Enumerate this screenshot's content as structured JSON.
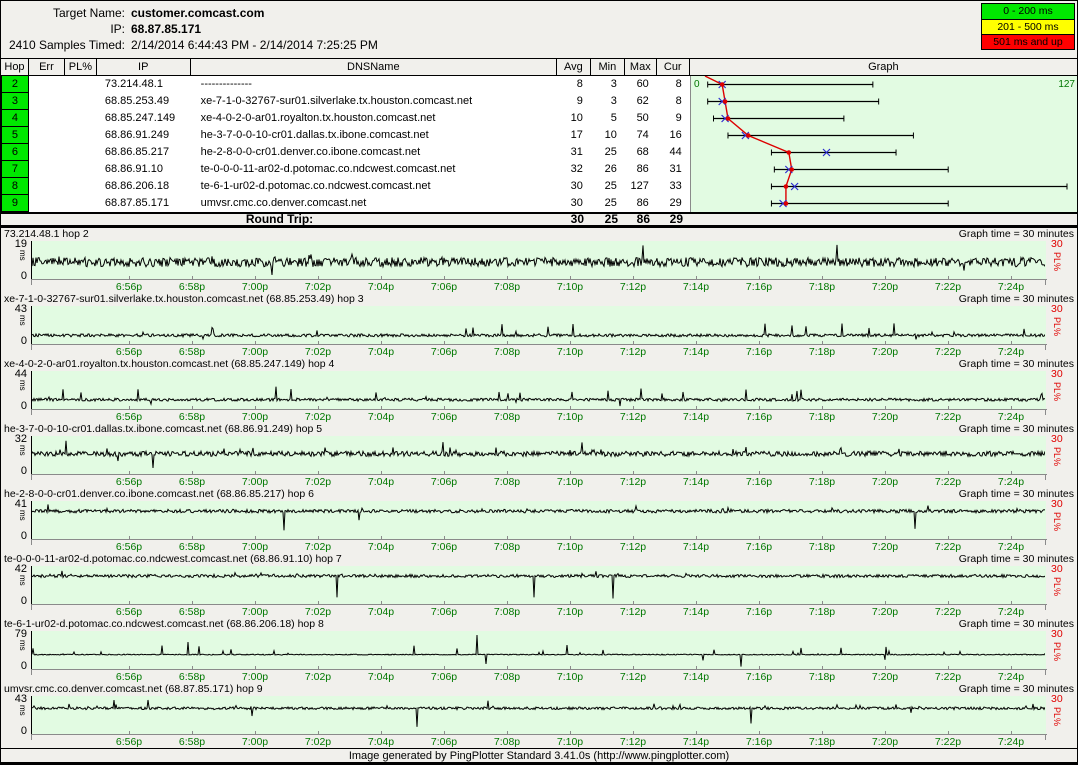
{
  "header": {
    "target_label": "Target Name:",
    "target_value": "customer.comcast.com",
    "ip_label": "IP:",
    "ip_value": "68.87.85.171",
    "samples_label": "2410 Samples Timed:",
    "samples_value": "2/14/2014 6:44:43 PM - 2/14/2014 7:25:25 PM"
  },
  "legend": {
    "items": [
      {
        "label": "0 - 200 ms",
        "color": "#00e800"
      },
      {
        "label": "201 - 500 ms",
        "color": "#ffff00"
      },
      {
        "label": "501 ms and up",
        "color": "#ff0000"
      }
    ]
  },
  "table": {
    "columns": [
      "Hop",
      "Err",
      "PL%",
      "IP",
      "DNSName",
      "Avg",
      "Min",
      "Max",
      "Cur",
      "Graph"
    ],
    "graph_axis": {
      "left_label": "0",
      "right_label": "127",
      "min": 0,
      "max": 127
    },
    "rows": [
      {
        "hop": "2",
        "err": "",
        "pl": "",
        "ip": "73.214.48.1",
        "dns": "--------------",
        "avg": 8,
        "min": 3,
        "max": 60,
        "cur": 8
      },
      {
        "hop": "3",
        "err": "",
        "pl": "",
        "ip": "68.85.253.49",
        "dns": "xe-7-1-0-32767-sur01.silverlake.tx.houston.comcast.net",
        "avg": 9,
        "min": 3,
        "max": 62,
        "cur": 8
      },
      {
        "hop": "4",
        "err": "",
        "pl": "",
        "ip": "68.85.247.149",
        "dns": "xe-4-0-2-0-ar01.royalton.tx.houston.comcast.net",
        "avg": 10,
        "min": 5,
        "max": 50,
        "cur": 9
      },
      {
        "hop": "5",
        "err": "",
        "pl": "",
        "ip": "68.86.91.249",
        "dns": "he-3-7-0-0-10-cr01.dallas.tx.ibone.comcast.net",
        "avg": 17,
        "min": 10,
        "max": 74,
        "cur": 16
      },
      {
        "hop": "6",
        "err": "",
        "pl": "",
        "ip": "68.86.85.217",
        "dns": "he-2-8-0-0-cr01.denver.co.ibone.comcast.net",
        "avg": 31,
        "min": 25,
        "max": 68,
        "cur": 44
      },
      {
        "hop": "7",
        "err": "",
        "pl": "",
        "ip": "68.86.91.10",
        "dns": "te-0-0-0-11-ar02-d.potomac.co.ndcwest.comcast.net",
        "avg": 32,
        "min": 26,
        "max": 86,
        "cur": 31
      },
      {
        "hop": "8",
        "err": "",
        "pl": "",
        "ip": "68.86.206.18",
        "dns": "te-6-1-ur02-d.potomac.co.ndcwest.comcast.net",
        "avg": 30,
        "min": 25,
        "max": 127,
        "cur": 33
      },
      {
        "hop": "9",
        "err": "",
        "pl": "",
        "ip": "68.87.85.171",
        "dns": "umvsr.cmc.co.denver.comcast.net",
        "avg": 30,
        "min": 25,
        "max": 86,
        "cur": 29
      }
    ],
    "round_trip": {
      "label": "Round Trip:",
      "avg": 30,
      "min": 25,
      "max": 86,
      "cur": 29
    }
  },
  "x_ticks": [
    "6:56p",
    "6:58p",
    "7:00p",
    "7:02p",
    "7:04p",
    "7:06p",
    "7:08p",
    "7:10p",
    "7:12p",
    "7:14p",
    "7:16p",
    "7:18p",
    "7:20p",
    "7:22p",
    "7:24p"
  ],
  "timelines": [
    {
      "label": "73.214.48.1 hop 2",
      "graph_time": "Graph time = 30 minutes",
      "y_max": 19,
      "y_min": 0,
      "unit": "ms",
      "pl_axis_max": 30,
      "pl_axis_label": "PL%",
      "avg_ms": 8
    },
    {
      "label": "xe-7-1-0-32767-sur01.silverlake.tx.houston.comcast.net (68.85.253.49) hop 3",
      "graph_time": "Graph time = 30 minutes",
      "y_max": 43,
      "y_min": 0,
      "unit": "ms",
      "pl_axis_max": 30,
      "pl_axis_label": "PL%",
      "avg_ms": 9
    },
    {
      "label": "xe-4-0-2-0-ar01.royalton.tx.houston.comcast.net (68.85.247.149) hop 4",
      "graph_time": "Graph time = 30 minutes",
      "y_max": 44,
      "y_min": 0,
      "unit": "ms",
      "pl_axis_max": 30,
      "pl_axis_label": "PL%",
      "avg_ms": 10
    },
    {
      "label": "he-3-7-0-0-10-cr01.dallas.tx.ibone.comcast.net (68.86.91.249) hop 5",
      "graph_time": "Graph time = 30 minutes",
      "y_max": 32,
      "y_min": 0,
      "unit": "ms",
      "pl_axis_max": 30,
      "pl_axis_label": "PL%",
      "avg_ms": 17
    },
    {
      "label": "he-2-8-0-0-cr01.denver.co.ibone.comcast.net (68.86.85.217) hop 6",
      "graph_time": "Graph time = 30 minutes",
      "y_max": 41,
      "y_min": 0,
      "unit": "ms",
      "pl_axis_max": 30,
      "pl_axis_label": "PL%",
      "avg_ms": 31
    },
    {
      "label": "te-0-0-0-11-ar02-d.potomac.co.ndcwest.comcast.net (68.86.91.10) hop 7",
      "graph_time": "Graph time = 30 minutes",
      "y_max": 42,
      "y_min": 0,
      "unit": "ms",
      "pl_axis_max": 30,
      "pl_axis_label": "PL%",
      "avg_ms": 32
    },
    {
      "label": "te-6-1-ur02-d.potomac.co.ndcwest.comcast.net (68.86.206.18) hop 8",
      "graph_time": "Graph time = 30 minutes",
      "y_max": 79,
      "y_min": 0,
      "unit": "ms",
      "pl_axis_max": 30,
      "pl_axis_label": "PL%",
      "avg_ms": 30
    },
    {
      "label": "umvsr.cmc.co.denver.comcast.net (68.87.85.171) hop 9",
      "graph_time": "Graph time = 30 minutes",
      "y_max": 43,
      "y_min": 0,
      "unit": "ms",
      "pl_axis_max": 30,
      "pl_axis_label": "PL%",
      "avg_ms": 30
    }
  ],
  "footer": {
    "text": "Image generated by PingPlotter Standard 3.41.0s (http://www.pingplotter.com)"
  }
}
